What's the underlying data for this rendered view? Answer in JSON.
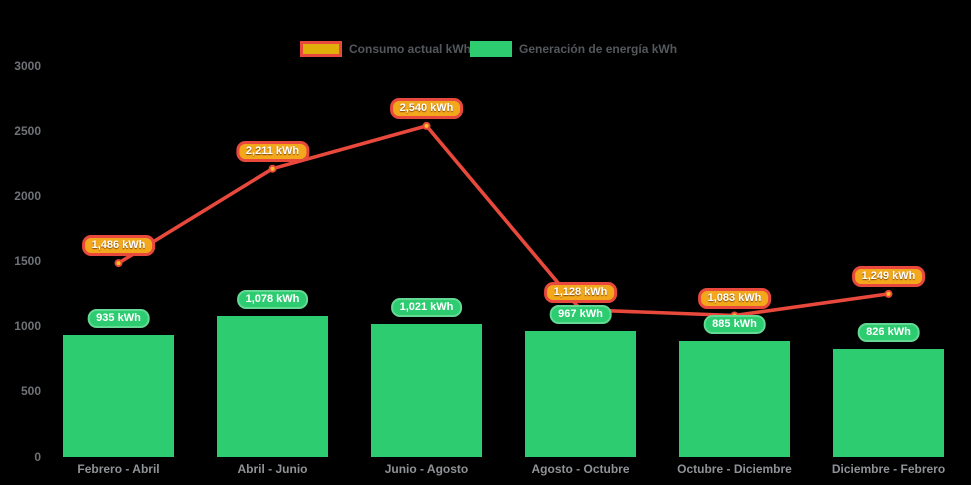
{
  "chart_data": {
    "type": "bar",
    "title": "",
    "xlabel": "",
    "ylabel": "",
    "categories": [
      "Febrero - Abril",
      "Abril - Junio",
      "Junio - Agosto",
      "Agosto - Octubre",
      "Octubre - Diciembre",
      "Diciembre - Febrero"
    ],
    "series": [
      {
        "name": "Consumo actual kWh",
        "type": "line",
        "values": [
          1486,
          2211,
          2540,
          1128,
          1083,
          1249
        ],
        "point_labels": [
          "1,486 kWh",
          "2,211 kWh",
          "2,540 kWh",
          "1,128 kWh",
          "1,083 kWh",
          "1,249 kWh"
        ]
      },
      {
        "name": "Generación de energía kWh",
        "type": "bar",
        "values": [
          935,
          1078,
          1021,
          967,
          885,
          826
        ],
        "point_labels": [
          "935 kWh",
          "1,078 kWh",
          "1,021 kWh",
          "967 kWh",
          "885 kWh",
          "826 kWh"
        ]
      }
    ],
    "ylim": [
      0,
      3000
    ],
    "yticks": [
      0,
      500,
      1000,
      1500,
      2000,
      2500,
      3000
    ],
    "grid": false,
    "legend_position": "top-center"
  },
  "legend": {
    "items": [
      {
        "label": "Consumo actual kWh"
      },
      {
        "label": "Generación de energía kWh"
      }
    ]
  },
  "colors": {
    "background": "#000000",
    "bar_fill": "#2ecc71",
    "line_stroke": "#e8493c",
    "marker_fill": "#fcc21b",
    "marker_stroke": "#e8493c",
    "green_badge_bg": "#2ecc71",
    "green_badge_border": "#63d994",
    "orange_badge_bg": "#f3a81c",
    "orange_badge_border": "#e8493c",
    "legend_swatch_consumo_fill": "#e2ae09",
    "legend_swatch_consumo_border": "#e8493c",
    "legend_swatch_generacion_fill": "#2ecc71",
    "legend_text": "#54585c",
    "ytick_text": "#6f7276",
    "category_text": "#8f9296"
  }
}
